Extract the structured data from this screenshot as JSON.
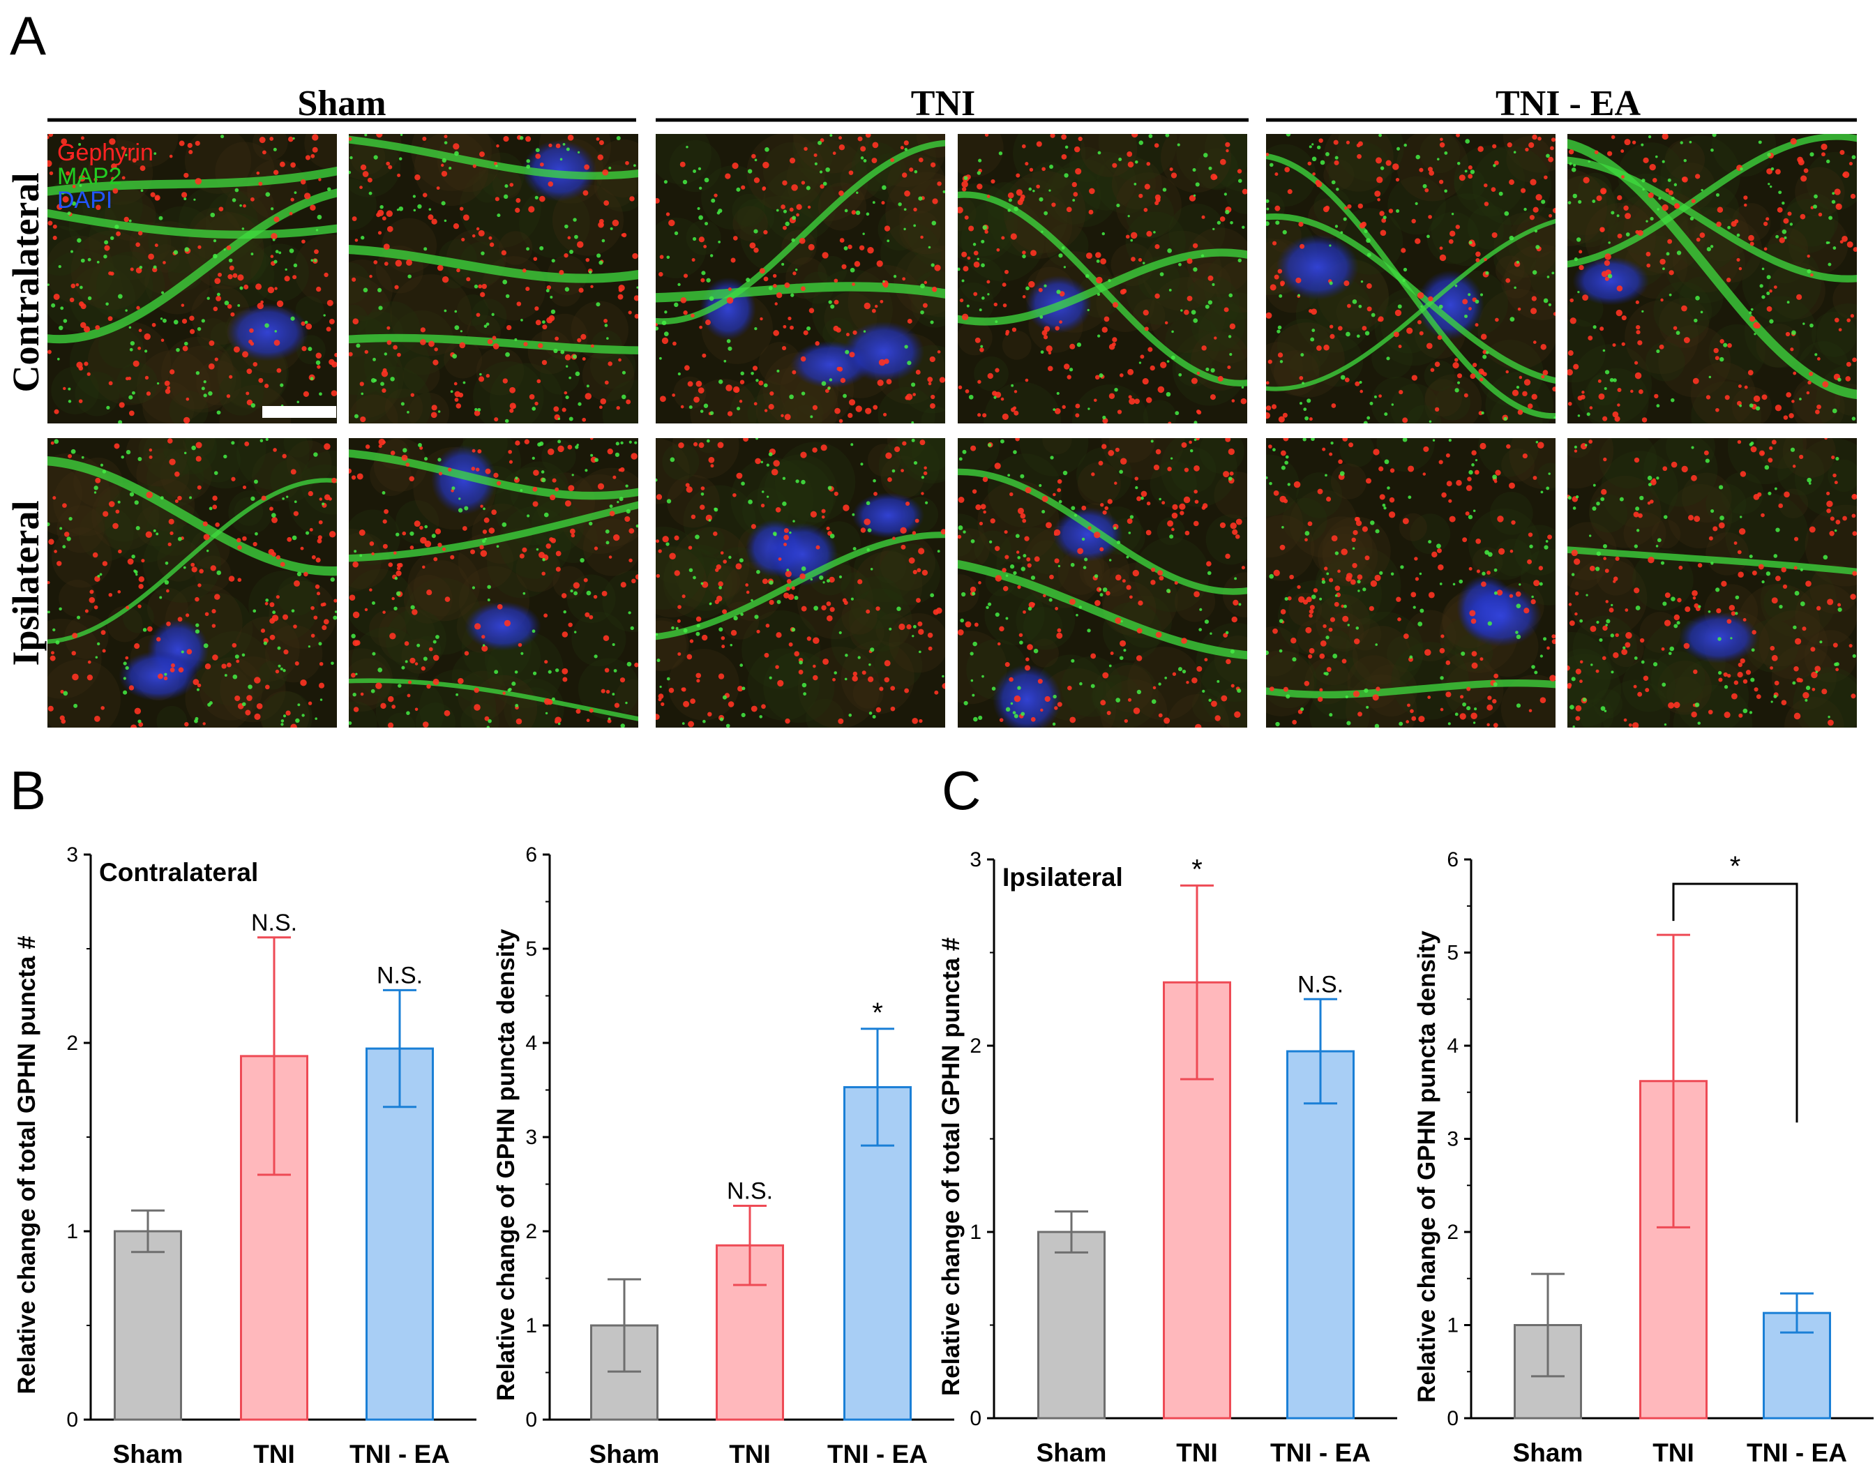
{
  "panel_letters": [
    "A",
    "B",
    "C"
  ],
  "micrograph": {
    "groups": [
      "Sham",
      "TNI",
      "TNI - EA"
    ],
    "rows": [
      "Contralateral",
      "Ipsilateral"
    ],
    "legend": [
      {
        "label": "Gephyrin",
        "color": "#ff2222"
      },
      {
        "label": "MAP2",
        "color": "#22cc22"
      },
      {
        "label": "DAPI",
        "color": "#2255ff"
      }
    ]
  },
  "colors": {
    "sham_fill": "#c4c4c4",
    "sham_edge": "#6e6e6e",
    "tni_fill": "#ffb8bc",
    "tni_edge": "#ee4a55",
    "ea_fill": "#a8cef5",
    "ea_edge": "#1a7fd6"
  },
  "chart_data": [
    {
      "type": "bar",
      "panel": "B",
      "inset_label": "Contralateral",
      "categories": [
        "Sham",
        "TNI",
        "TNI - EA"
      ],
      "values": [
        1.0,
        1.93,
        1.97
      ],
      "errors": [
        0.11,
        0.63,
        0.31
      ],
      "annotations": [
        "",
        "N.S.",
        "N.S."
      ],
      "ylabel": "Relative change of total GPHN puncta #",
      "ylim": [
        0,
        3
      ],
      "yticks": [
        "0",
        "1",
        "2",
        "3"
      ]
    },
    {
      "type": "bar",
      "panel": "B",
      "inset_label": "",
      "categories": [
        "Sham",
        "TNI",
        "TNI - EA"
      ],
      "values": [
        1.0,
        1.85,
        3.53
      ],
      "errors": [
        0.49,
        0.42,
        0.62
      ],
      "annotations": [
        "",
        "N.S.",
        "*"
      ],
      "ylabel": "Relative change of GPHN puncta density",
      "ylim": [
        0,
        6
      ],
      "yticks": [
        "0",
        "1",
        "2",
        "3",
        "4",
        "5",
        "6"
      ]
    },
    {
      "type": "bar",
      "panel": "C",
      "inset_label": "Ipsilateral",
      "categories": [
        "Sham",
        "TNI",
        "TNI - EA"
      ],
      "values": [
        1.0,
        2.34,
        1.97
      ],
      "errors": [
        0.11,
        0.52,
        0.28
      ],
      "annotations": [
        "",
        "*",
        "N.S."
      ],
      "ylabel": "Relative change of total GPHN puncta #",
      "ylim": [
        0,
        3
      ],
      "yticks": [
        "0",
        "1",
        "2",
        "3"
      ]
    },
    {
      "type": "bar",
      "panel": "C",
      "inset_label": "",
      "categories": [
        "Sham",
        "TNI",
        "TNI - EA"
      ],
      "values": [
        1.0,
        3.62,
        1.13
      ],
      "errors": [
        0.55,
        1.57,
        0.21
      ],
      "annotations": [
        "",
        "",
        ""
      ],
      "bracket": {
        "from": 1,
        "to": 2,
        "label": "*"
      },
      "ylabel": "Relative change of GPHN puncta density",
      "ylim": [
        0,
        6
      ],
      "yticks": [
        "0",
        "1",
        "2",
        "3",
        "4",
        "5",
        "6"
      ]
    }
  ]
}
